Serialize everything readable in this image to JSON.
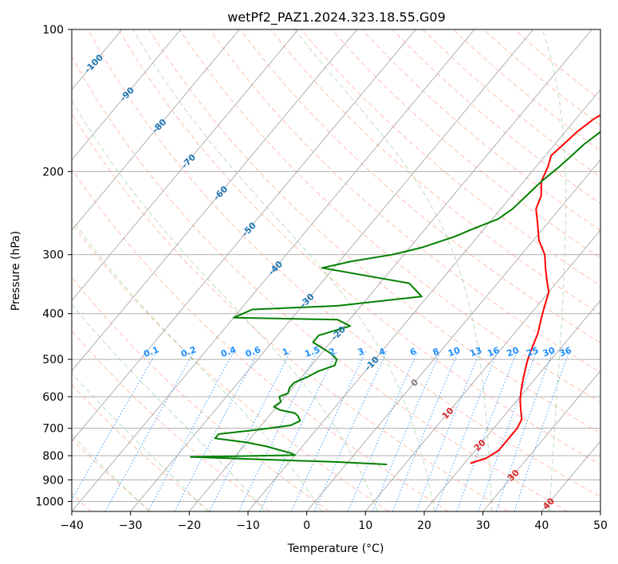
{
  "chart_data": {
    "type": "line",
    "subtype": "skew-t log-p",
    "title": "wetPf2_PAZ1.2024.323.18.55.G09",
    "xlabel": "Temperature (°C)",
    "ylabel": "Pressure (hPa)",
    "xlim": [
      -40,
      50
    ],
    "ylim": [
      1050,
      100
    ],
    "y_scale": "log",
    "grid": true,
    "x_ticks": [
      -40,
      -30,
      -20,
      -10,
      0,
      10,
      20,
      30,
      40,
      50
    ],
    "y_ticks": [
      100,
      200,
      300,
      400,
      500,
      600,
      700,
      800,
      900,
      1000
    ],
    "series": [
      {
        "role": "temperature",
        "color": "#ff0000",
        "points": [
          [
            21,
            830
          ],
          [
            23,
            810
          ],
          [
            24,
            780
          ],
          [
            24,
            740
          ],
          [
            24,
            700
          ],
          [
            23.5,
            670
          ],
          [
            22,
            640
          ],
          [
            20.5,
            610
          ],
          [
            19.2,
            580
          ],
          [
            18,
            550
          ],
          [
            16.8,
            520
          ],
          [
            16,
            500
          ],
          [
            15,
            470
          ],
          [
            14,
            440
          ],
          [
            12.5,
            410
          ],
          [
            11.5,
            390
          ],
          [
            10,
            360
          ],
          [
            8,
            340
          ],
          [
            6,
            320
          ],
          [
            4,
            300
          ],
          [
            1,
            280
          ],
          [
            -2,
            255
          ],
          [
            -4,
            240
          ],
          [
            -5,
            225
          ],
          [
            -7,
            210
          ],
          [
            -8,
            195
          ],
          [
            -9,
            185
          ],
          [
            -8.5,
            175
          ],
          [
            -8,
            165
          ],
          [
            -7,
            155
          ],
          [
            -5,
            145
          ],
          [
            -1,
            135
          ],
          [
            1,
            130
          ],
          [
            3,
            125
          ],
          [
            5,
            122
          ],
          [
            8,
            120
          ],
          [
            9,
            115
          ],
          [
            10,
            112
          ],
          [
            11,
            108
          ],
          [
            12,
            105
          ],
          [
            13,
            100
          ]
        ]
      },
      {
        "role": "dewpoint",
        "color": "#008000",
        "points": [
          [
            7,
            835
          ],
          [
            -2,
            825
          ],
          [
            -15,
            815
          ],
          [
            -27.5,
            805
          ],
          [
            -10,
            798
          ],
          [
            -11,
            790
          ],
          [
            -14,
            775
          ],
          [
            -16,
            765
          ],
          [
            -20,
            750
          ],
          [
            -26,
            735
          ],
          [
            -26,
            720
          ],
          [
            -20,
            705
          ],
          [
            -15,
            690
          ],
          [
            -14,
            675
          ],
          [
            -15,
            660
          ],
          [
            -16,
            650
          ],
          [
            -19,
            640
          ],
          [
            -20.5,
            630
          ],
          [
            -20,
            615
          ],
          [
            -21,
            600
          ],
          [
            -20,
            590
          ],
          [
            -20.5,
            575
          ],
          [
            -20.5,
            560
          ],
          [
            -19,
            545
          ],
          [
            -18,
            530
          ],
          [
            -16,
            515
          ],
          [
            -16.5,
            500
          ],
          [
            -18.5,
            485
          ],
          [
            -23,
            460
          ],
          [
            -23,
            445
          ],
          [
            -19,
            425
          ],
          [
            -22,
            412
          ],
          [
            -40,
            408
          ],
          [
            -38,
            392
          ],
          [
            -24,
            385
          ],
          [
            -11,
            368
          ],
          [
            -15,
            345
          ],
          [
            -32,
            320
          ],
          [
            -28,
            310
          ],
          [
            -22,
            300
          ],
          [
            -18,
            290
          ],
          [
            -14,
            275
          ],
          [
            -12,
            265
          ],
          [
            -9,
            252
          ],
          [
            -8,
            240
          ],
          [
            -7.5,
            225
          ],
          [
            -7,
            210
          ],
          [
            -6,
            195
          ],
          [
            -5.5,
            185
          ],
          [
            -5,
            175
          ],
          [
            -4,
            165
          ],
          [
            -3,
            158
          ],
          [
            -2,
            150
          ],
          [
            -1,
            142
          ],
          [
            -0.5,
            135
          ],
          [
            -1,
            128
          ],
          [
            -0.5,
            122
          ],
          [
            0,
            118
          ],
          [
            1,
            115
          ],
          [
            2,
            112
          ],
          [
            4,
            108
          ],
          [
            6,
            104
          ],
          [
            7,
            100
          ]
        ]
      }
    ],
    "isotherms": {
      "color": "#a9a9a9",
      "values": [
        -140,
        -130,
        -120,
        -110,
        -100,
        -90,
        -80,
        -70,
        -60,
        -50,
        -40,
        -30,
        -20,
        -10,
        0,
        10,
        20,
        30,
        40,
        50
      ]
    },
    "dry_adiabats": {
      "color": "#ff8c69",
      "theta_c": [
        -40,
        -30,
        -20,
        -10,
        0,
        10,
        20,
        30,
        40,
        50,
        60,
        70,
        80,
        90,
        100,
        110,
        120,
        130,
        140,
        150,
        160,
        170,
        180,
        190
      ]
    },
    "moist_adiabats": {
      "color": "#66bb66",
      "start_t_c": [
        -30,
        -20,
        -10,
        0,
        10,
        20,
        30,
        40
      ]
    },
    "mixing_ratio_lines": {
      "color": "#1e90ff",
      "values": [
        0.1,
        0.2,
        0.4,
        0.6,
        1,
        1.5,
        2,
        3,
        4,
        6,
        8,
        10,
        13,
        16,
        20,
        25,
        30,
        36
      ],
      "labels": [
        "0.1",
        "0.2",
        "0.4",
        "0.6",
        "1",
        "1.5",
        "2",
        "3",
        "4",
        "6",
        "8",
        "10",
        "13",
        "16",
        "20",
        "25",
        "30",
        "36"
      ]
    },
    "isotherm_labels": [
      {
        "text": "-100",
        "t": -100,
        "p": 118,
        "color": "#1f77b4"
      },
      {
        "text": "-90",
        "t": -90,
        "p": 137,
        "color": "#1f77b4"
      },
      {
        "text": "-80",
        "t": -80,
        "p": 160,
        "color": "#1f77b4"
      },
      {
        "text": "-70",
        "t": -70,
        "p": 190,
        "color": "#1f77b4"
      },
      {
        "text": "-60",
        "t": -60,
        "p": 222,
        "color": "#1f77b4"
      },
      {
        "text": "-50",
        "t": -50,
        "p": 265,
        "color": "#1f77b4"
      },
      {
        "text": "-40",
        "t": -40,
        "p": 320,
        "color": "#1f77b4"
      },
      {
        "text": "-30",
        "t": -30,
        "p": 375,
        "color": "#1f77b4"
      },
      {
        "text": "-20",
        "t": -20,
        "p": 440,
        "color": "#1f77b4"
      },
      {
        "text": "-10",
        "t": -10,
        "p": 510,
        "color": "#1f77b4"
      },
      {
        "text": "0",
        "t": 0,
        "p": 560,
        "color": "#808080"
      },
      {
        "text": "10",
        "t": 10,
        "p": 650,
        "color": "#d62728"
      },
      {
        "text": "20",
        "t": 20,
        "p": 760,
        "color": "#d62728"
      },
      {
        "text": "30",
        "t": 30,
        "p": 880,
        "color": "#d62728"
      },
      {
        "text": "40",
        "t": 40,
        "p": 1010,
        "color": "#d62728"
      }
    ]
  }
}
